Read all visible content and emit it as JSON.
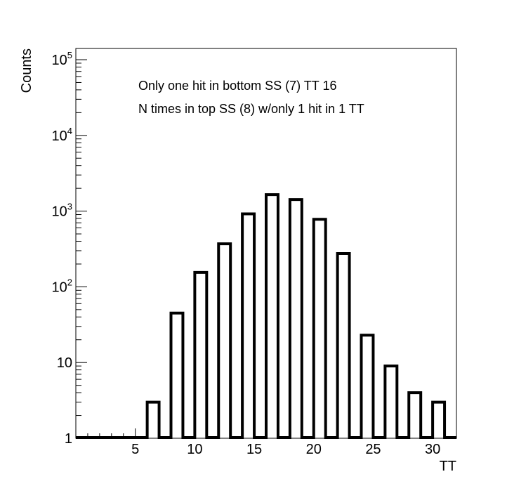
{
  "chart_data": {
    "type": "bar",
    "annotations": [
      "Only one hit in bottom SS (7) TT 16",
      "N times in top SS (8) w/only 1 hit in 1 TT"
    ],
    "xlabel": "TT",
    "ylabel": "Counts",
    "x_scale": "linear",
    "y_scale": "log",
    "xlim": [
      0,
      32
    ],
    "ylim": [
      1,
      100000
    ],
    "x_ticks": [
      5,
      10,
      15,
      20,
      25,
      30
    ],
    "y_tick_labels": [
      {
        "value": 1,
        "base": "1",
        "exp": ""
      },
      {
        "value": 10,
        "base": "10",
        "exp": ""
      },
      {
        "value": 100,
        "base": "10",
        "exp": "2"
      },
      {
        "value": 1000,
        "base": "10",
        "exp": "3"
      },
      {
        "value": 10000,
        "base": "10",
        "exp": "4"
      },
      {
        "value": 100000,
        "base": "10",
        "exp": "5"
      }
    ],
    "grid": false,
    "legend": "none",
    "bin_width": 1,
    "x": [
      6,
      8,
      10,
      12,
      14,
      16,
      18,
      20,
      22,
      24,
      26,
      28,
      30
    ],
    "values": [
      3,
      45,
      155,
      370,
      920,
      1650,
      1420,
      780,
      275,
      23,
      9,
      4,
      3
    ],
    "bar_color": "#000000"
  }
}
